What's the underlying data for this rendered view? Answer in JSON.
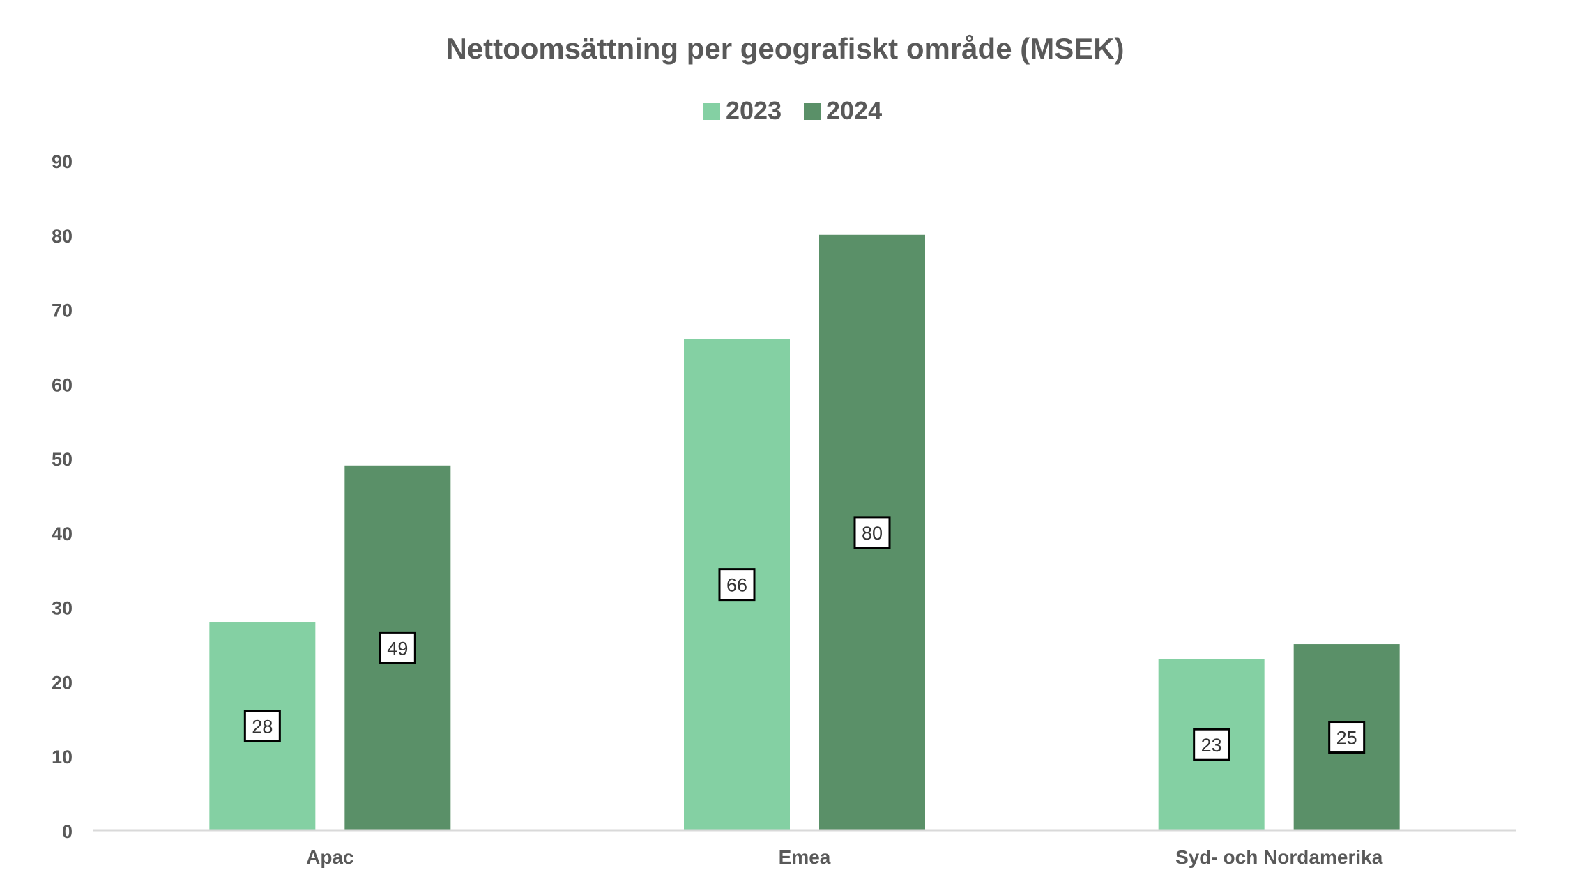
{
  "chart_data": {
    "type": "bar",
    "title": "Nettoomsättning per geografiskt område (MSEK)",
    "categories": [
      "Apac",
      "Emea",
      "Syd- och Nordamerika"
    ],
    "series": [
      {
        "name": "2023",
        "values": [
          28,
          66,
          23
        ],
        "color": "#84D0A3",
        "labels": [
          "28",
          "66",
          "23"
        ]
      },
      {
        "name": "2024",
        "values": [
          49,
          80,
          25
        ],
        "color": "#5A9068",
        "labels": [
          "49",
          "80",
          "25"
        ]
      }
    ],
    "ylim": [
      0,
      90
    ],
    "yticks": [
      "0",
      "10",
      "20",
      "30",
      "40",
      "50",
      "60",
      "70",
      "80",
      "90"
    ],
    "gridlines": false,
    "legend_position": "top-center",
    "text_color": "#595959",
    "axis_color": "#D9D9D9"
  }
}
